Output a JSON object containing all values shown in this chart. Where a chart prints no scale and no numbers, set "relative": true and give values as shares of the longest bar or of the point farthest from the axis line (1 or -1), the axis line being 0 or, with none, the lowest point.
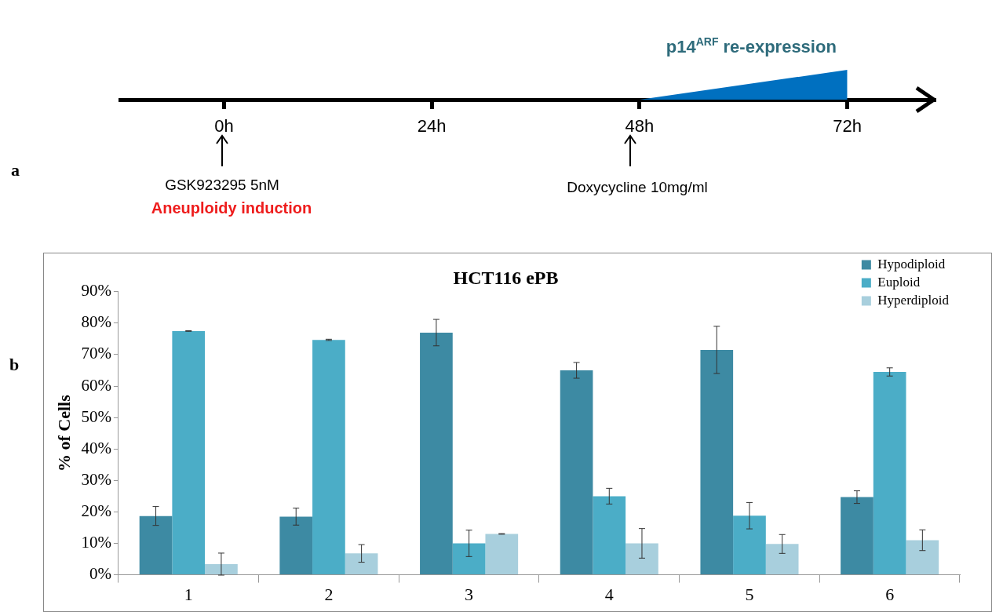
{
  "chart_data": [
    {
      "type": "area",
      "title": "p14$^{ARF}$ re-expression",
      "relative": true,
      "x": [
        48,
        72
      ],
      "series": [
        {
          "color": "#0070c0",
          "values": [
            0,
            1
          ]
        }
      ],
      "xlim": [
        -12,
        82
      ],
      "xticks": [
        {
          "value": 0,
          "label": "0h"
        },
        {
          "value": 24,
          "label": "24h"
        },
        {
          "value": 48,
          "label": "48h"
        },
        {
          "value": 72,
          "label": "72h"
        }
      ],
      "annotations": [
        "a",
        "GSK923295 5nM",
        "Aneuploidy induction",
        "Doxycycline 10mg/ml"
      ]
    },
    {
      "type": "bar",
      "title": "HCT116 ePB",
      "ylabel": "% of Cells",
      "annotations": [
        "b"
      ],
      "categories": [
        "1",
        "2",
        "3",
        "4",
        "5",
        "6"
      ],
      "series": [
        {
          "name": "Hypodiploid",
          "color": "#3d8aa3",
          "values": [
            18.7,
            18.5,
            77.0,
            65.0,
            71.5,
            24.7
          ],
          "errors": [
            3.0,
            2.7,
            4.2,
            2.5,
            7.5,
            2.0
          ]
        },
        {
          "name": "Euploid",
          "color": "#4badc7",
          "values": [
            77.5,
            74.7,
            10.0,
            25.0,
            18.8,
            64.5
          ],
          "errors": [
            0.1,
            0.2,
            4.2,
            2.5,
            4.2,
            1.3
          ]
        },
        {
          "name": "Hyperdiploid",
          "color": "#a8cfdd",
          "values": [
            3.4,
            6.8,
            13.0,
            10.0,
            9.8,
            11.0
          ],
          "errors": [
            3.5,
            2.8,
            0.1,
            4.7,
            3.0,
            3.3
          ]
        }
      ],
      "ylim": [
        0,
        90
      ],
      "yticks": [
        {
          "value": 0,
          "label": "0%"
        },
        {
          "value": 10,
          "label": "10%"
        },
        {
          "value": 20,
          "label": "20%"
        },
        {
          "value": 30,
          "label": "30%"
        },
        {
          "value": 40,
          "label": "40%"
        },
        {
          "value": 50,
          "label": "50%"
        },
        {
          "value": 60,
          "label": "60%"
        },
        {
          "value": 70,
          "label": "70%"
        },
        {
          "value": 80,
          "label": "80%"
        },
        {
          "value": 90,
          "label": "90%"
        }
      ],
      "grid": false,
      "legend": "top right"
    }
  ]
}
